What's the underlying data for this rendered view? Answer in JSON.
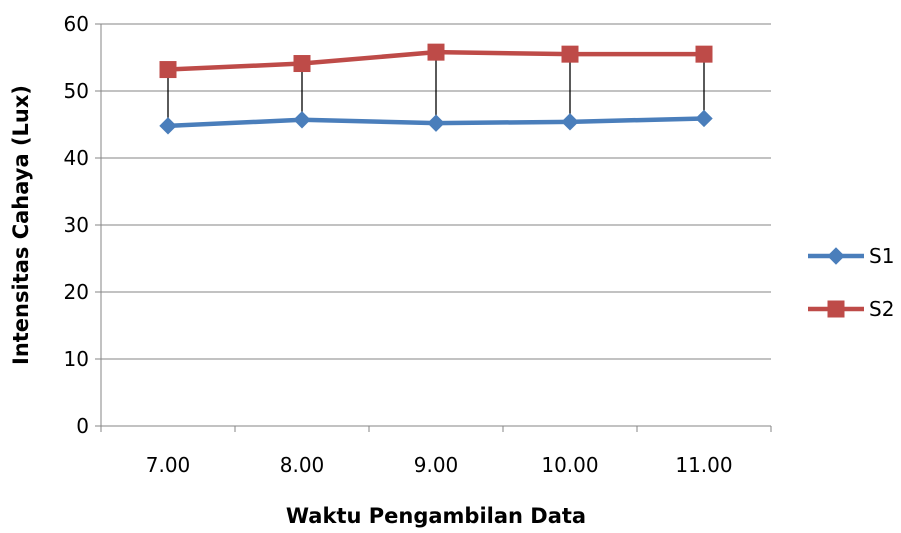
{
  "chart_data": {
    "type": "line",
    "title": "",
    "xlabel": "Waktu Pengambilan Data",
    "ylabel": "Intensitas Cahaya (Lux)",
    "categories": [
      "7.00",
      "8.00",
      "9.00",
      "10.00",
      "11.00"
    ],
    "ylim": [
      0,
      60
    ],
    "yticks": [
      "0",
      "10",
      "20",
      "30",
      "40",
      "50",
      "60"
    ],
    "grid": true,
    "legend_position": "right",
    "drop_lines": true,
    "series": [
      {
        "name": "S1",
        "values": [
          44.8,
          45.7,
          45.2,
          45.4,
          45.9
        ],
        "color": "#4a7ebb",
        "marker": "diamond"
      },
      {
        "name": "S2",
        "values": [
          53.2,
          54.1,
          55.8,
          55.5,
          55.5
        ],
        "color": "#be4b48",
        "marker": "square"
      }
    ],
    "colors": {
      "grid": "#868686",
      "axis": "#868686",
      "drop_line": "#000000"
    }
  }
}
